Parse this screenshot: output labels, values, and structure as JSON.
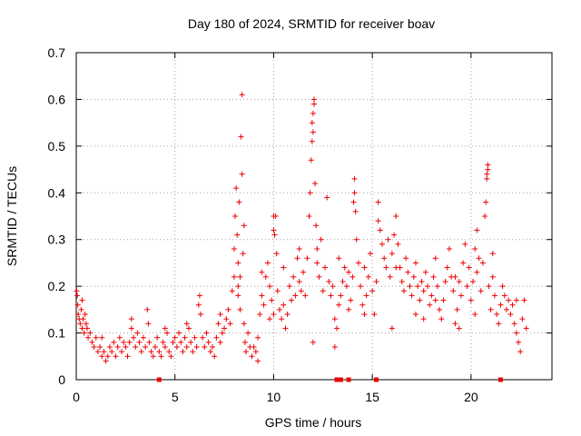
{
  "chart_data": {
    "type": "scatter",
    "title": "Day 180 of 2024, SRMTID for receiver boav",
    "xlabel": "GPS time / hours",
    "ylabel": "SRMTID / TECUs",
    "xlim": [
      0,
      24.1
    ],
    "ylim": [
      0,
      0.7
    ],
    "x_ticks": [
      0,
      5,
      10,
      15,
      20
    ],
    "x_tick_labels": [
      "0",
      "5",
      "10",
      "15",
      "20"
    ],
    "y_ticks": [
      0,
      0.1,
      0.2,
      0.3,
      0.4,
      0.5,
      0.6,
      0.7
    ],
    "y_tick_labels": [
      "0",
      "0.1",
      "0.2",
      "0.3",
      "0.4",
      "0.5",
      "0.6",
      "0.7"
    ],
    "grid": true,
    "marker": "+",
    "series": [
      {
        "name": "SRMTID",
        "color": "#ee0000",
        "points": [
          [
            0.02,
            0.19
          ],
          [
            0.05,
            0.18
          ],
          [
            0.08,
            0.16
          ],
          [
            0.1,
            0.14
          ],
          [
            0.15,
            0.13
          ],
          [
            0.2,
            0.12
          ],
          [
            0.25,
            0.15
          ],
          [
            0.3,
            0.11
          ],
          [
            0.35,
            0.13
          ],
          [
            0.4,
            0.1
          ],
          [
            0.45,
            0.14
          ],
          [
            0.5,
            0.12
          ],
          [
            0.55,
            0.11
          ],
          [
            0.6,
            0.09
          ],
          [
            0.7,
            0.1
          ],
          [
            0.8,
            0.08
          ],
          [
            0.9,
            0.07
          ],
          [
            1.0,
            0.09
          ],
          [
            1.1,
            0.06
          ],
          [
            1.2,
            0.07
          ],
          [
            1.3,
            0.05
          ],
          [
            1.4,
            0.06
          ],
          [
            1.5,
            0.04
          ],
          [
            1.6,
            0.05
          ],
          [
            1.7,
            0.07
          ],
          [
            1.8,
            0.06
          ],
          [
            1.9,
            0.08
          ],
          [
            2.0,
            0.05
          ],
          [
            2.1,
            0.07
          ],
          [
            2.2,
            0.09
          ],
          [
            2.3,
            0.06
          ],
          [
            2.4,
            0.08
          ],
          [
            2.5,
            0.07
          ],
          [
            2.6,
            0.05
          ],
          [
            2.7,
            0.08
          ],
          [
            2.8,
            0.11
          ],
          [
            2.9,
            0.09
          ],
          [
            3.0,
            0.07
          ],
          [
            3.1,
            0.1
          ],
          [
            3.2,
            0.08
          ],
          [
            3.3,
            0.06
          ],
          [
            3.4,
            0.09
          ],
          [
            3.5,
            0.07
          ],
          [
            3.6,
            0.15
          ],
          [
            3.65,
            0.12
          ],
          [
            3.7,
            0.08
          ],
          [
            3.8,
            0.06
          ],
          [
            3.9,
            0.05
          ],
          [
            4.0,
            0.07
          ],
          [
            4.1,
            0.09
          ],
          [
            4.2,
            0.06
          ],
          [
            4.3,
            0.05
          ],
          [
            4.4,
            0.08
          ],
          [
            4.5,
            0.07
          ],
          [
            4.6,
            0.1
          ],
          [
            4.7,
            0.06
          ],
          [
            4.8,
            0.05
          ],
          [
            4.9,
            0.08
          ],
          [
            5.0,
            0.09
          ],
          [
            5.1,
            0.07
          ],
          [
            5.2,
            0.1
          ],
          [
            5.3,
            0.08
          ],
          [
            5.4,
            0.06
          ],
          [
            5.5,
            0.09
          ],
          [
            5.6,
            0.07
          ],
          [
            5.7,
            0.11
          ],
          [
            5.8,
            0.08
          ],
          [
            5.9,
            0.06
          ],
          [
            6.0,
            0.09
          ],
          [
            6.1,
            0.07
          ],
          [
            6.2,
            0.16
          ],
          [
            6.25,
            0.18
          ],
          [
            6.3,
            0.14
          ],
          [
            6.4,
            0.09
          ],
          [
            6.5,
            0.07
          ],
          [
            6.6,
            0.1
          ],
          [
            6.7,
            0.08
          ],
          [
            6.8,
            0.06
          ],
          [
            6.9,
            0.07
          ],
          [
            7.0,
            0.05
          ],
          [
            7.1,
            0.09
          ],
          [
            7.2,
            0.12
          ],
          [
            7.3,
            0.14
          ],
          [
            7.4,
            0.1
          ],
          [
            7.5,
            0.11
          ],
          [
            7.6,
            0.13
          ],
          [
            7.7,
            0.15
          ],
          [
            7.8,
            0.12
          ],
          [
            7.9,
            0.19
          ],
          [
            8.0,
            0.22
          ],
          [
            8.0,
            0.28
          ],
          [
            8.05,
            0.35
          ],
          [
            8.1,
            0.41
          ],
          [
            8.15,
            0.31
          ],
          [
            8.2,
            0.25
          ],
          [
            8.2,
            0.2
          ],
          [
            8.25,
            0.38
          ],
          [
            8.3,
            0.15
          ],
          [
            8.35,
            0.52
          ],
          [
            8.4,
            0.61
          ],
          [
            8.4,
            0.44
          ],
          [
            8.45,
            0.27
          ],
          [
            8.5,
            0.12
          ],
          [
            8.55,
            0.08
          ],
          [
            8.6,
            0.06
          ],
          [
            8.7,
            0.1
          ],
          [
            8.8,
            0.07
          ],
          [
            8.9,
            0.05
          ],
          [
            9.0,
            0.07
          ],
          [
            9.1,
            0.06
          ],
          [
            9.2,
            0.09
          ],
          [
            9.3,
            0.14
          ],
          [
            9.4,
            0.18
          ],
          [
            9.5,
            0.16
          ],
          [
            9.6,
            0.22
          ],
          [
            9.7,
            0.25
          ],
          [
            9.8,
            0.2
          ],
          [
            9.9,
            0.17
          ],
          [
            10.0,
            0.14
          ],
          [
            10.05,
            0.31
          ],
          [
            10.1,
            0.35
          ],
          [
            10.15,
            0.27
          ],
          [
            10.2,
            0.19
          ],
          [
            10.3,
            0.15
          ],
          [
            10.4,
            0.13
          ],
          [
            10.5,
            0.16
          ],
          [
            10.6,
            0.11
          ],
          [
            10.7,
            0.14
          ],
          [
            10.8,
            0.2
          ],
          [
            10.9,
            0.17
          ],
          [
            11.0,
            0.22
          ],
          [
            11.1,
            0.18
          ],
          [
            11.2,
            0.26
          ],
          [
            11.3,
            0.21
          ],
          [
            11.4,
            0.19
          ],
          [
            11.5,
            0.23
          ],
          [
            11.6,
            0.18
          ],
          [
            11.7,
            0.26
          ],
          [
            11.8,
            0.35
          ],
          [
            11.85,
            0.4
          ],
          [
            11.9,
            0.47
          ],
          [
            11.95,
            0.51
          ],
          [
            12.0,
            0.53
          ],
          [
            12.0,
            0.57
          ],
          [
            12.05,
            0.6
          ],
          [
            12.1,
            0.42
          ],
          [
            12.15,
            0.33
          ],
          [
            12.2,
            0.25
          ],
          [
            12.3,
            0.22
          ],
          [
            12.4,
            0.3
          ],
          [
            12.5,
            0.19
          ],
          [
            12.6,
            0.24
          ],
          [
            12.7,
            0.39
          ],
          [
            12.8,
            0.21
          ],
          [
            12.9,
            0.18
          ],
          [
            13.0,
            0.2
          ],
          [
            13.1,
            0.13
          ],
          [
            13.2,
            0.11
          ],
          [
            13.3,
            0.16
          ],
          [
            13.4,
            0.18
          ],
          [
            13.5,
            0.21
          ],
          [
            13.6,
            0.24
          ],
          [
            13.7,
            0.2
          ],
          [
            13.8,
            0.15
          ],
          [
            13.9,
            0.17
          ],
          [
            14.0,
            0.22
          ],
          [
            14.05,
            0.38
          ],
          [
            14.1,
            0.43
          ],
          [
            14.15,
            0.36
          ],
          [
            14.2,
            0.3
          ],
          [
            14.3,
            0.25
          ],
          [
            14.4,
            0.2
          ],
          [
            14.5,
            0.16
          ],
          [
            14.6,
            0.14
          ],
          [
            14.7,
            0.18
          ],
          [
            14.8,
            0.22
          ],
          [
            14.9,
            0.27
          ],
          [
            15.0,
            0.19
          ],
          [
            15.1,
            0.14
          ],
          [
            15.2,
            0.21
          ],
          [
            15.3,
            0.38
          ],
          [
            15.4,
            0.32
          ],
          [
            15.5,
            0.29
          ],
          [
            15.6,
            0.26
          ],
          [
            15.7,
            0.24
          ],
          [
            15.8,
            0.3
          ],
          [
            15.9,
            0.22
          ],
          [
            16.0,
            0.27
          ],
          [
            16.1,
            0.31
          ],
          [
            16.2,
            0.35
          ],
          [
            16.3,
            0.29
          ],
          [
            16.4,
            0.24
          ],
          [
            16.5,
            0.21
          ],
          [
            16.6,
            0.19
          ],
          [
            16.7,
            0.26
          ],
          [
            16.8,
            0.23
          ],
          [
            16.9,
            0.2
          ],
          [
            17.0,
            0.18
          ],
          [
            17.1,
            0.22
          ],
          [
            17.2,
            0.25
          ],
          [
            17.3,
            0.2
          ],
          [
            17.4,
            0.17
          ],
          [
            17.5,
            0.21
          ],
          [
            17.6,
            0.19
          ],
          [
            17.7,
            0.23
          ],
          [
            17.8,
            0.2
          ],
          [
            17.9,
            0.16
          ],
          [
            18.0,
            0.18
          ],
          [
            18.1,
            0.22
          ],
          [
            18.2,
            0.26
          ],
          [
            18.3,
            0.2
          ],
          [
            18.4,
            0.15
          ],
          [
            18.5,
            0.13
          ],
          [
            18.6,
            0.17
          ],
          [
            18.7,
            0.21
          ],
          [
            18.8,
            0.24
          ],
          [
            18.9,
            0.28
          ],
          [
            19.0,
            0.22
          ],
          [
            19.1,
            0.19
          ],
          [
            19.2,
            0.12
          ],
          [
            19.3,
            0.15
          ],
          [
            19.4,
            0.21
          ],
          [
            19.5,
            0.18
          ],
          [
            19.6,
            0.25
          ],
          [
            19.7,
            0.29
          ],
          [
            19.8,
            0.2
          ],
          [
            19.9,
            0.24
          ],
          [
            20.0,
            0.17
          ],
          [
            20.1,
            0.21
          ],
          [
            20.2,
            0.28
          ],
          [
            20.3,
            0.32
          ],
          [
            20.4,
            0.26
          ],
          [
            20.5,
            0.19
          ],
          [
            20.6,
            0.25
          ],
          [
            20.7,
            0.35
          ],
          [
            20.75,
            0.38
          ],
          [
            20.8,
            0.43
          ],
          [
            20.85,
            0.46
          ],
          [
            20.9,
            0.2
          ],
          [
            21.0,
            0.15
          ],
          [
            21.1,
            0.22
          ],
          [
            21.2,
            0.18
          ],
          [
            21.3,
            0.14
          ],
          [
            21.4,
            0.12
          ],
          [
            21.5,
            0.16
          ],
          [
            21.6,
            0.2
          ],
          [
            21.7,
            0.18
          ],
          [
            21.8,
            0.15
          ],
          [
            21.9,
            0.17
          ],
          [
            22.0,
            0.14
          ],
          [
            22.1,
            0.16
          ],
          [
            22.2,
            0.12
          ],
          [
            22.3,
            0.1
          ],
          [
            22.4,
            0.08
          ],
          [
            22.5,
            0.06
          ],
          [
            22.6,
            0.13
          ],
          [
            22.7,
            0.17
          ],
          [
            22.8,
            0.11
          ],
          [
            8.5,
            0.33
          ],
          [
            8.3,
            0.22
          ],
          [
            9.8,
            0.13
          ],
          [
            10.5,
            0.24
          ],
          [
            11.3,
            0.28
          ],
          [
            12.2,
            0.28
          ],
          [
            13.3,
            0.26
          ],
          [
            13.8,
            0.23
          ],
          [
            14.1,
            0.4
          ],
          [
            14.6,
            0.24
          ],
          [
            15.3,
            0.34
          ],
          [
            16.2,
            0.24
          ],
          [
            17.2,
            0.14
          ],
          [
            18.2,
            0.17
          ],
          [
            19.2,
            0.22
          ],
          [
            20.3,
            0.23
          ],
          [
            21.1,
            0.27
          ],
          [
            22.3,
            0.17
          ],
          [
            0.3,
            0.17
          ],
          [
            1.3,
            0.09
          ],
          [
            2.8,
            0.13
          ],
          [
            4.5,
            0.11
          ],
          [
            5.6,
            0.12
          ],
          [
            7.3,
            0.08
          ],
          [
            8.2,
            0.18
          ],
          [
            9.4,
            0.23
          ],
          [
            10.0,
            0.32
          ],
          [
            10.0,
            0.35
          ],
          [
            11.95,
            0.55
          ],
          [
            12.05,
            0.59
          ],
          [
            20.85,
            0.45
          ],
          [
            20.8,
            0.44
          ],
          [
            12.0,
            0.08
          ],
          [
            13.1,
            0.07
          ],
          [
            9.2,
            0.04
          ],
          [
            16.0,
            0.11
          ],
          [
            17.6,
            0.13
          ],
          [
            19.4,
            0.11
          ],
          [
            20.2,
            0.14
          ]
        ]
      }
    ],
    "zero_markers_x": [
      4.2,
      13.2,
      13.3,
      13.4,
      13.8,
      15.2,
      21.5
    ]
  }
}
